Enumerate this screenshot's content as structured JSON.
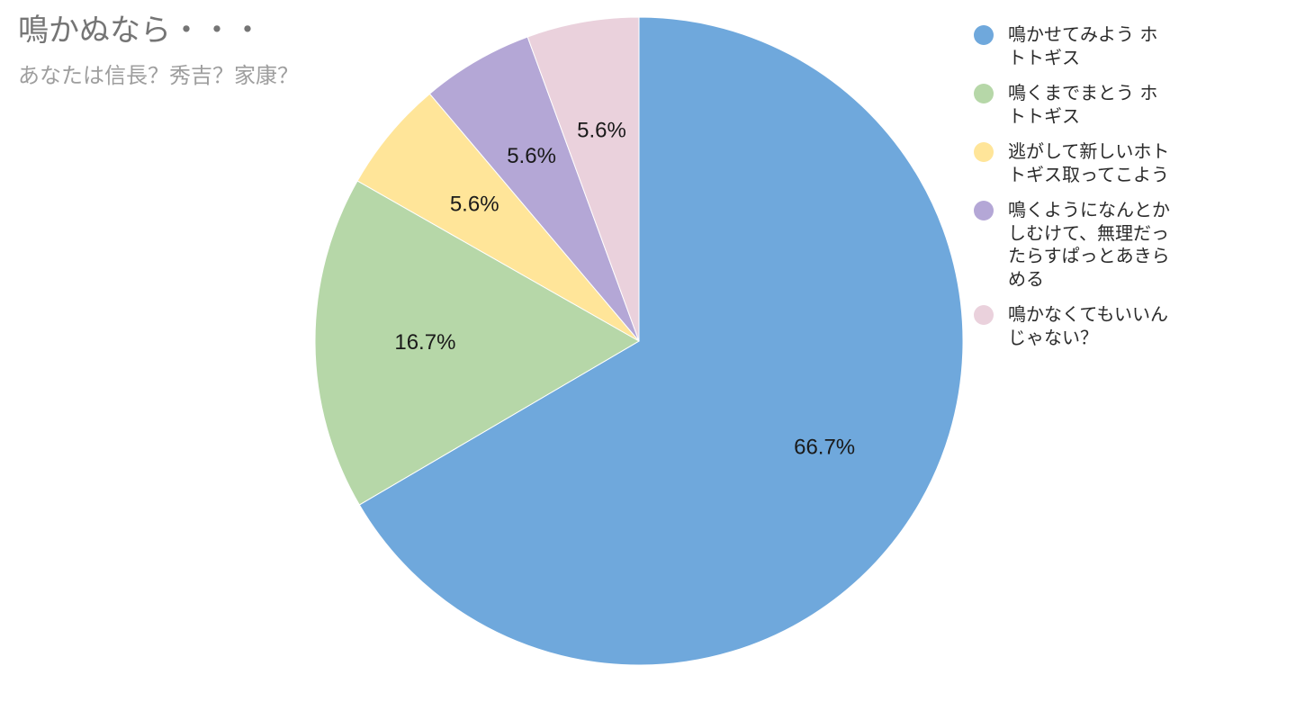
{
  "chart_data": {
    "type": "pie",
    "title": "鳴かぬなら・・・",
    "subtitle": "あなたは信長？秀吉？家康？",
    "start_angle_deg": 0,
    "direction": "clockwise",
    "legend_position": "right",
    "slices": [
      {
        "label": "鳴かせてみよう ホトトギス",
        "value": 66.7,
        "display": "66.7%",
        "color": "#6fa8dc"
      },
      {
        "label": "鳴くまでまとう ホトトギス",
        "value": 16.7,
        "display": "16.7%",
        "color": "#b6d7a8"
      },
      {
        "label": "逃がして新しいホトトギス取ってこよう",
        "value": 5.6,
        "display": "5.6%",
        "color": "#ffe599"
      },
      {
        "label": "鳴くようになんとかしむけて、無理だったらすぱっとあきらめる",
        "value": 5.6,
        "display": "5.6%",
        "color": "#b4a7d6"
      },
      {
        "label": "鳴かなくてもいいんじゃない？",
        "value": 5.6,
        "display": "5.6%",
        "color": "#ead1dc"
      }
    ]
  }
}
